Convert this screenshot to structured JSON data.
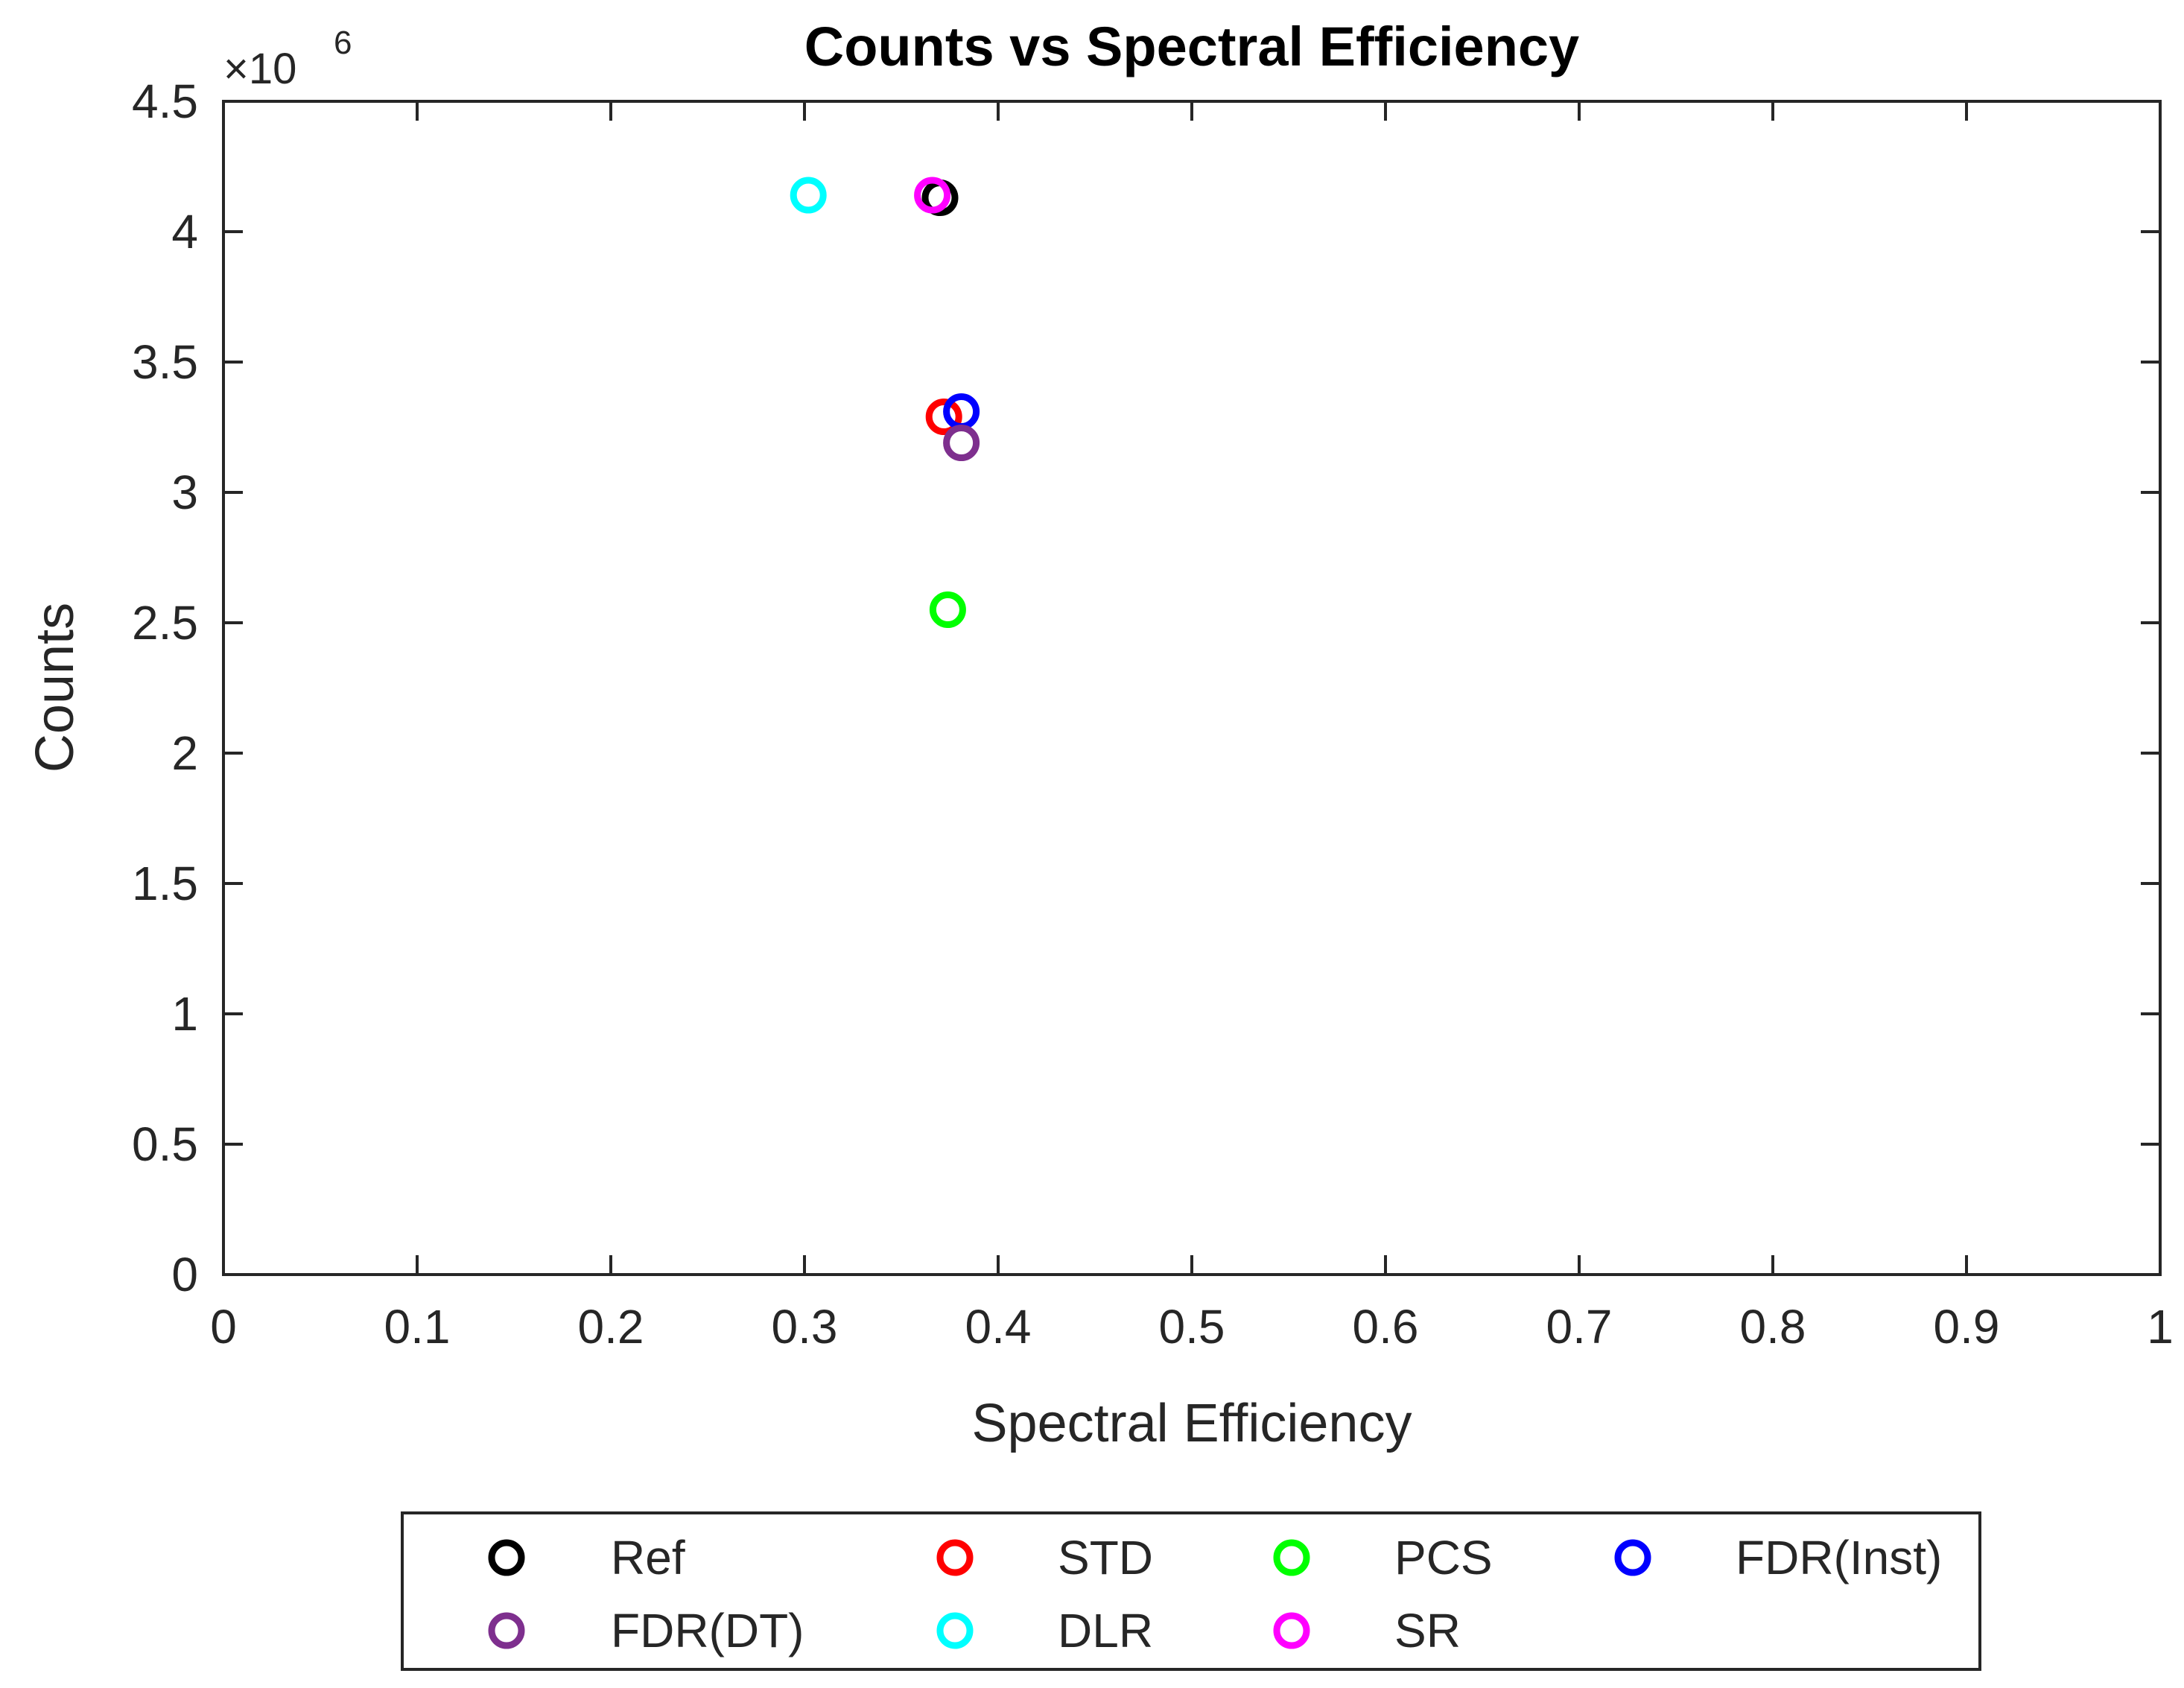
{
  "chart_data": {
    "type": "scatter",
    "title": "Counts vs Spectral Efficiency",
    "xlabel": "Spectral Efficiency",
    "ylabel": "Counts",
    "xlim": [
      0,
      1
    ],
    "ylim": [
      0,
      4500000
    ],
    "y_exponent_base": "×10",
    "y_exponent_power": "6",
    "xticks": [
      0,
      0.1,
      0.2,
      0.3,
      0.4,
      0.5,
      0.6,
      0.7,
      0.8,
      0.9,
      1
    ],
    "xtick_labels": [
      "0",
      "0.1",
      "0.2",
      "0.3",
      "0.4",
      "0.5",
      "0.6",
      "0.7",
      "0.8",
      "0.9",
      "1"
    ],
    "yticks": [
      0,
      500000,
      1000000,
      1500000,
      2000000,
      2500000,
      3000000,
      3500000,
      4000000,
      4500000
    ],
    "ytick_labels": [
      "0",
      "0.5",
      "1",
      "1.5",
      "2",
      "2.5",
      "3",
      "3.5",
      "4",
      "4.5"
    ],
    "grid": false,
    "legend_position": "bottom-outside",
    "marker": "open-circle",
    "series": [
      {
        "name": "Ref",
        "color": "#000000",
        "x": [
          0.37
        ],
        "y": [
          4130000
        ]
      },
      {
        "name": "STD",
        "color": "#ff0000",
        "x": [
          0.372
        ],
        "y": [
          3290000
        ]
      },
      {
        "name": "PCS",
        "color": "#00ff00",
        "x": [
          0.374
        ],
        "y": [
          2550000
        ]
      },
      {
        "name": "FDR(Inst)",
        "color": "#0000ff",
        "x": [
          0.381
        ],
        "y": [
          3310000
        ]
      },
      {
        "name": "FDR(DT)",
        "color": "#7e2f8e",
        "x": [
          0.381
        ],
        "y": [
          3190000
        ]
      },
      {
        "name": "DLR",
        "color": "#00ffff",
        "x": [
          0.302
        ],
        "y": [
          4140000
        ]
      },
      {
        "name": "SR",
        "color": "#ff00ff",
        "x": [
          0.366
        ],
        "y": [
          4140000
        ]
      }
    ]
  }
}
